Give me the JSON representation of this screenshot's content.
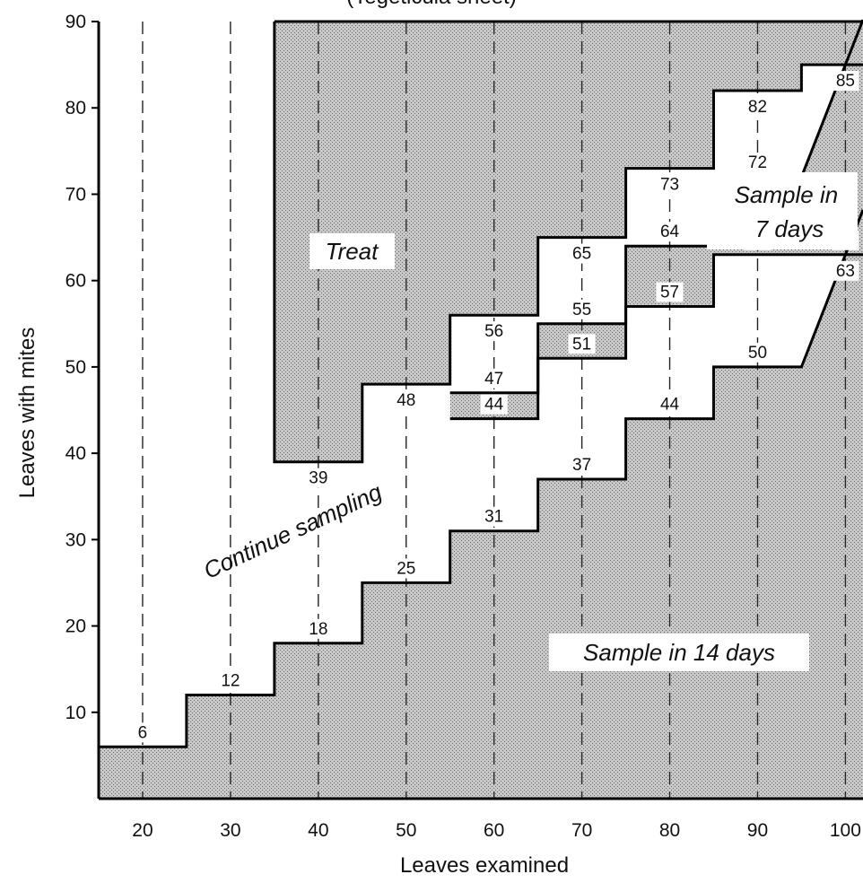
{
  "chart_data": {
    "type": "area",
    "title": "(Tegeticula sheet)",
    "xlabel": "Leaves examined",
    "ylabel": "Leaves with mites",
    "xlim": [
      15,
      102
    ],
    "ylim": [
      0,
      90
    ],
    "xticks": [
      20,
      30,
      40,
      50,
      60,
      70,
      80,
      90,
      100
    ],
    "yticks": [
      10,
      20,
      30,
      40,
      50,
      60,
      70,
      80,
      90
    ],
    "samples_at": [
      20,
      30,
      40,
      50,
      60,
      70,
      80,
      90,
      100
    ],
    "series": [
      {
        "values": [
          6,
          12,
          18,
          25,
          31,
          37,
          44,
          50,
          63
        ]
      },
      {
        "values": [
          null,
          null,
          null,
          null,
          44,
          51,
          57,
          63,
          null
        ]
      },
      {
        "values": [
          null,
          null,
          null,
          null,
          47,
          55,
          64,
          72,
          null
        ]
      },
      {
        "values": [
          null,
          null,
          39,
          48,
          56,
          65,
          73,
          82,
          85
        ]
      }
    ],
    "extra_labels": [
      {
        "x": 100,
        "y": 63,
        "text": "63"
      }
    ],
    "regions": [
      {
        "name": "Treat"
      },
      {
        "name": "Continue sampling"
      },
      {
        "name": "Sample in 7 days"
      },
      {
        "name": "Sample in 14 days"
      }
    ],
    "grid": "dashed vertical lines at sample sizes",
    "legend": "none",
    "fill_pattern": "stippled gray for stop regions"
  }
}
